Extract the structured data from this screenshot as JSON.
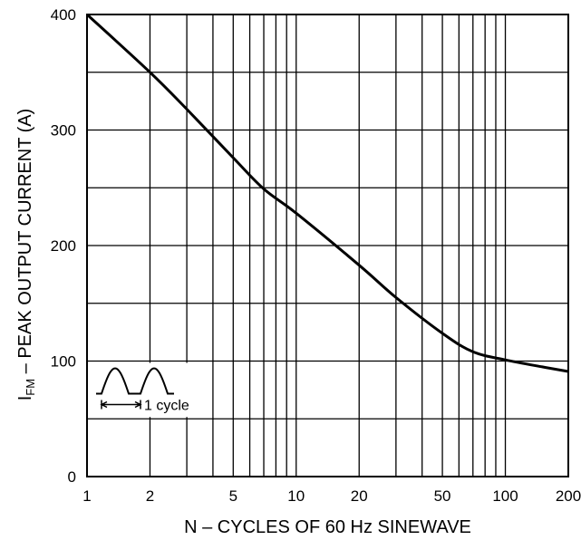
{
  "chart_data": {
    "type": "line",
    "x_scale": "log",
    "xlabel": "N – CYCLES OF 60 Hz SINEWAVE",
    "ylabel_main": "I",
    "ylabel_sub": "FM",
    "ylabel_rest": " – PEAK OUTPUT CURRENT (A)",
    "xlim": [
      1,
      200
    ],
    "ylim": [
      0,
      400
    ],
    "x_ticks": [
      1,
      2,
      5,
      10,
      20,
      50,
      100,
      200
    ],
    "x_tick_labels": [
      "1",
      "2",
      "5",
      "10",
      "20",
      "50",
      "100",
      "200"
    ],
    "y_ticks": [
      0,
      100,
      200,
      300,
      400
    ],
    "y_tick_labels": [
      "0",
      "100",
      "200",
      "300",
      "400"
    ],
    "grid": true,
    "series": [
      {
        "x": [
          1,
          2,
          3,
          5,
          7,
          10,
          20,
          30,
          50,
          70,
          100,
          150,
          200
        ],
        "y": [
          400,
          350,
          318,
          276,
          249,
          228,
          183,
          155,
          124,
          108,
          101,
          95,
          91
        ]
      }
    ],
    "annotation": {
      "text": "1 cycle"
    }
  }
}
